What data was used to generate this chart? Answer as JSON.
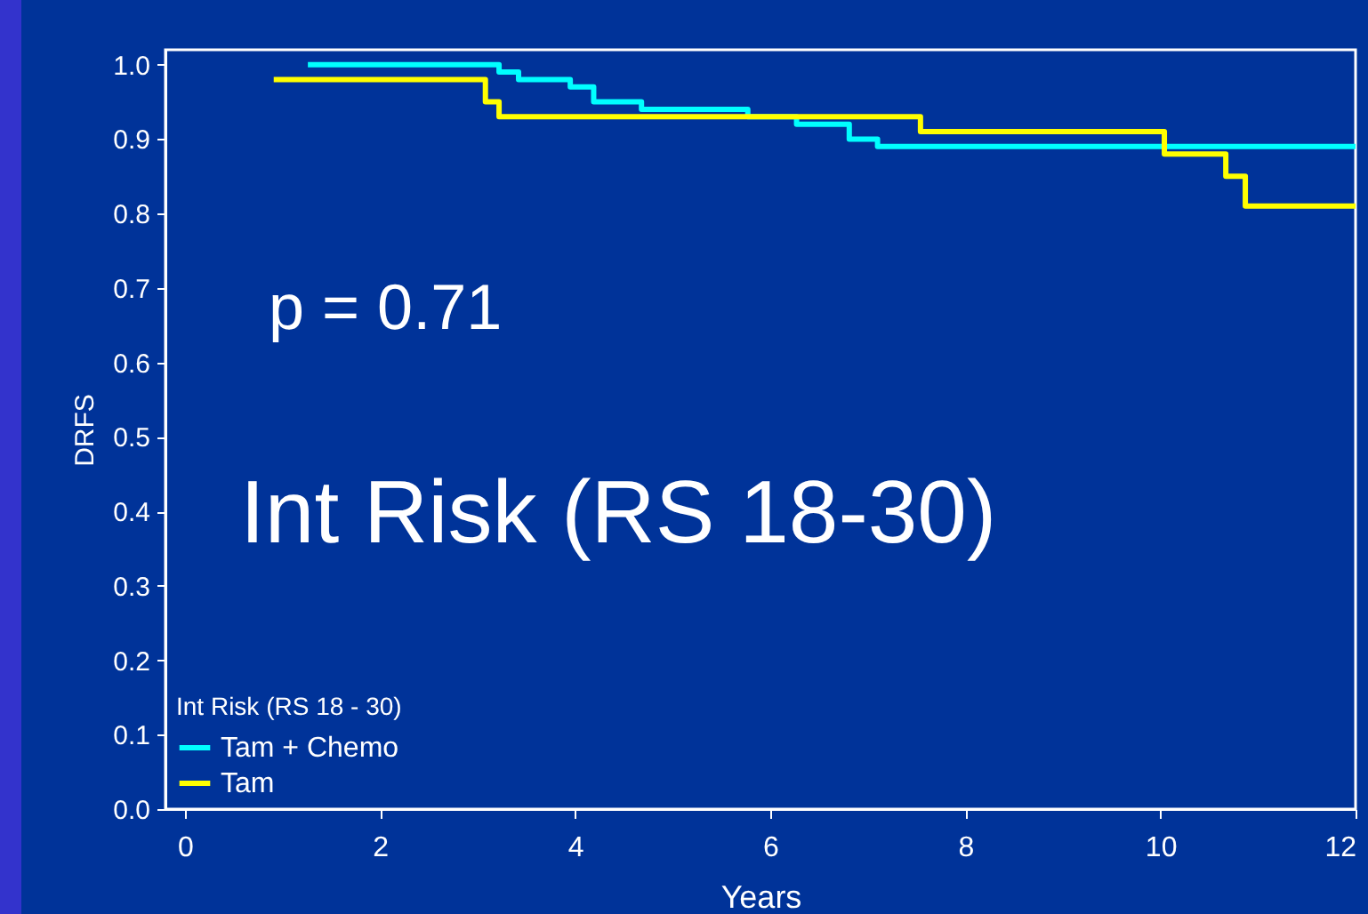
{
  "chart_data": {
    "type": "step",
    "xlabel": "Years",
    "ylabel": "DRFS",
    "legend_title": "Int Risk (RS 18 - 30)",
    "legend": "bottom left",
    "grid": false,
    "annotations": [
      "p = 0.71",
      "Int  Risk (RS 18-30)"
    ],
    "xlim": [
      -0.2,
      12
    ],
    "xticks": [
      0,
      2,
      4,
      6,
      8,
      10,
      12
    ],
    "ylim": [
      0,
      1.02
    ],
    "yticks": [
      {
        "value": 0,
        "label": "0.0"
      },
      0.1,
      0.2,
      0.3,
      0.4,
      0.5,
      0.6,
      0.7,
      0.8,
      0.9,
      {
        "value": 1,
        "label": "1.0"
      }
    ],
    "line_style": "solid",
    "series": [
      {
        "name": "Tam + Chemo",
        "color": "#00ffff",
        "x": [
          1.26,
          3.22,
          3.42,
          3.95,
          4.19,
          4.68,
          5.77,
          6.27,
          6.81,
          7.1,
          12
        ],
        "values": [
          1.0,
          0.99,
          0.98,
          0.97,
          0.95,
          0.94,
          0.93,
          0.92,
          0.9,
          0.89,
          0.89
        ]
      },
      {
        "name": "Tam",
        "color": "#ffff00",
        "x": [
          0.91,
          3.08,
          3.22,
          7.54,
          10.04,
          10.67,
          10.87,
          12
        ],
        "values": [
          0.98,
          0.95,
          0.93,
          0.91,
          0.88,
          0.85,
          0.81,
          0.81
        ]
      }
    ]
  }
}
